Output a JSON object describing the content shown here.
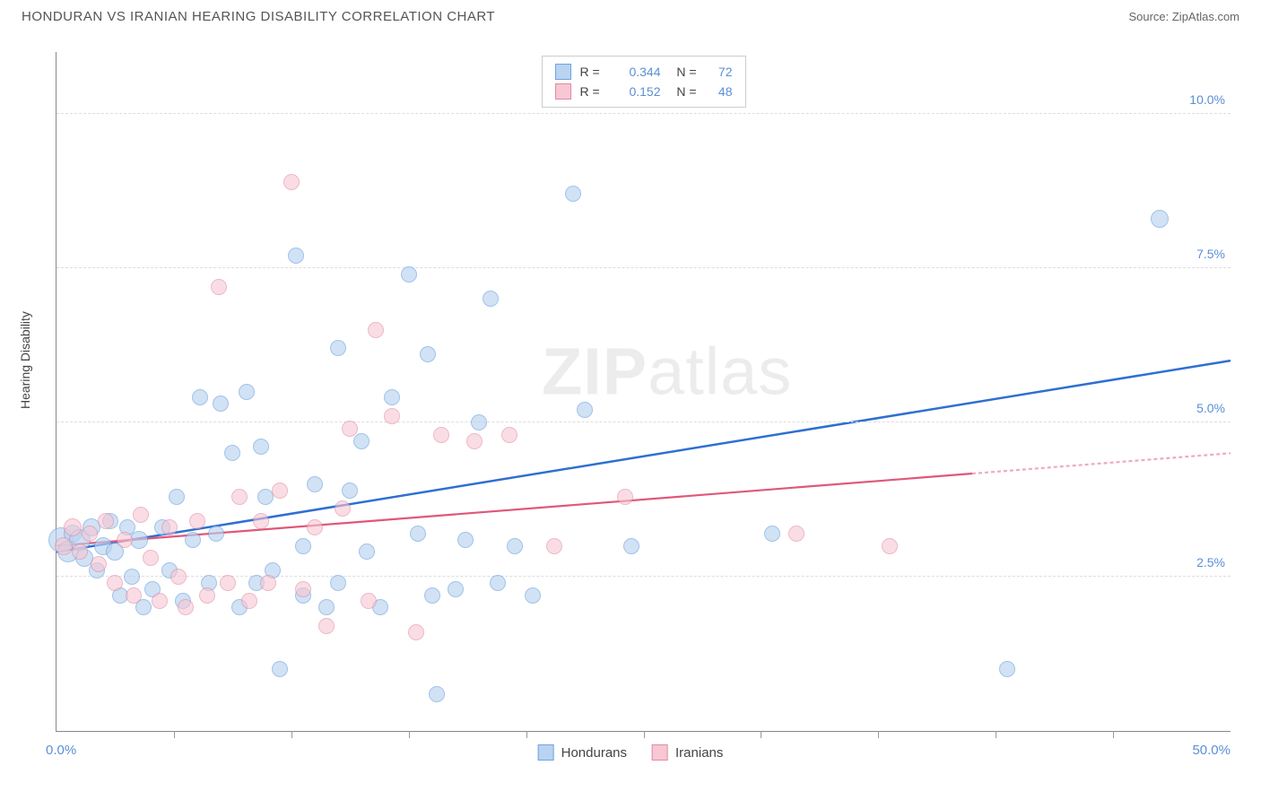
{
  "title": "HONDURAN VS IRANIAN HEARING DISABILITY CORRELATION CHART",
  "source": "Source: ZipAtlas.com",
  "ylabel": "Hearing Disability",
  "watermark_bold": "ZIP",
  "watermark_light": "atlas",
  "legend_top": {
    "series": [
      {
        "swatch_fill": "#b9d3f0",
        "swatch_border": "#6fa3e0",
        "r_label": "R =",
        "r": "0.344",
        "n_label": "N =",
        "n": "72"
      },
      {
        "swatch_fill": "#f7c7d3",
        "swatch_border": "#e08aa3",
        "r_label": "R =",
        "r": "0.152",
        "n_label": "N =",
        "n": "48"
      }
    ]
  },
  "legend_bottom": {
    "series": [
      {
        "swatch_fill": "#b9d3f0",
        "swatch_border": "#6fa3e0",
        "label": "Hondurans"
      },
      {
        "swatch_fill": "#f7c7d3",
        "swatch_border": "#e08aa3",
        "label": "Iranians"
      }
    ]
  },
  "chart": {
    "type": "scatter",
    "xlim": [
      0,
      50
    ],
    "ylim": [
      0,
      11
    ],
    "x_axis_min_label": "0.0%",
    "x_axis_max_label": "50.0%",
    "y_ticks": [
      {
        "v": 2.5,
        "label": "2.5%"
      },
      {
        "v": 5.0,
        "label": "5.0%"
      },
      {
        "v": 7.5,
        "label": "7.5%"
      },
      {
        "v": 10.0,
        "label": "10.0%"
      }
    ],
    "x_tick_positions": [
      5,
      10,
      15,
      20,
      25,
      30,
      35,
      40,
      45
    ],
    "grid_color": "#dddddd",
    "background_color": "#ffffff",
    "series": [
      {
        "name": "Hondurans",
        "marker_fill": "#b9d3f0",
        "marker_border": "#6fa3e0",
        "marker_opacity": 0.65,
        "marker_radius": 8,
        "trend": {
          "color": "#2f6fd1",
          "width": 2.5,
          "x1": 0,
          "y1": 2.9,
          "x2": 50,
          "y2": 6.0,
          "dash_from_x": null
        },
        "points": [
          {
            "x": 0.2,
            "y": 3.1,
            "r": 14
          },
          {
            "x": 0.5,
            "y": 2.9,
            "r": 12
          },
          {
            "x": 0.7,
            "y": 3.2,
            "r": 10
          },
          {
            "x": 1.0,
            "y": 3.1,
            "r": 12
          },
          {
            "x": 1.2,
            "y": 2.8,
            "r": 10
          },
          {
            "x": 1.5,
            "y": 3.3,
            "r": 10
          },
          {
            "x": 1.7,
            "y": 2.6,
            "r": 9
          },
          {
            "x": 2.0,
            "y": 3.0,
            "r": 10
          },
          {
            "x": 2.3,
            "y": 3.4,
            "r": 9
          },
          {
            "x": 2.5,
            "y": 2.9,
            "r": 10
          },
          {
            "x": 2.7,
            "y": 2.2,
            "r": 9
          },
          {
            "x": 3.0,
            "y": 3.3,
            "r": 9
          },
          {
            "x": 3.2,
            "y": 2.5,
            "r": 9
          },
          {
            "x": 3.5,
            "y": 3.1,
            "r": 10
          },
          {
            "x": 3.7,
            "y": 2.0,
            "r": 9
          },
          {
            "x": 4.1,
            "y": 2.3,
            "r": 9
          },
          {
            "x": 4.5,
            "y": 3.3,
            "r": 9
          },
          {
            "x": 4.8,
            "y": 2.6,
            "r": 9
          },
          {
            "x": 5.1,
            "y": 3.8,
            "r": 9
          },
          {
            "x": 5.4,
            "y": 2.1,
            "r": 9
          },
          {
            "x": 5.8,
            "y": 3.1,
            "r": 9
          },
          {
            "x": 6.1,
            "y": 5.4,
            "r": 9
          },
          {
            "x": 6.5,
            "y": 2.4,
            "r": 9
          },
          {
            "x": 6.8,
            "y": 3.2,
            "r": 9
          },
          {
            "x": 7.0,
            "y": 5.3,
            "r": 9
          },
          {
            "x": 7.5,
            "y": 4.5,
            "r": 9
          },
          {
            "x": 7.8,
            "y": 2.0,
            "r": 9
          },
          {
            "x": 8.1,
            "y": 5.5,
            "r": 9
          },
          {
            "x": 8.5,
            "y": 2.4,
            "r": 9
          },
          {
            "x": 8.7,
            "y": 4.6,
            "r": 9
          },
          {
            "x": 8.9,
            "y": 3.8,
            "r": 9
          },
          {
            "x": 9.2,
            "y": 2.6,
            "r": 9
          },
          {
            "x": 9.5,
            "y": 1.0,
            "r": 9
          },
          {
            "x": 10.2,
            "y": 7.7,
            "r": 9
          },
          {
            "x": 10.5,
            "y": 3.0,
            "r": 9
          },
          {
            "x": 10.5,
            "y": 2.2,
            "r": 9
          },
          {
            "x": 11.0,
            "y": 4.0,
            "r": 9
          },
          {
            "x": 11.5,
            "y": 2.0,
            "r": 9
          },
          {
            "x": 12.0,
            "y": 6.2,
            "r": 9
          },
          {
            "x": 12.0,
            "y": 2.4,
            "r": 9
          },
          {
            "x": 12.5,
            "y": 3.9,
            "r": 9
          },
          {
            "x": 13.0,
            "y": 4.7,
            "r": 9
          },
          {
            "x": 13.2,
            "y": 2.9,
            "r": 9
          },
          {
            "x": 13.8,
            "y": 2.0,
            "r": 9
          },
          {
            "x": 14.3,
            "y": 5.4,
            "r": 9
          },
          {
            "x": 15.0,
            "y": 7.4,
            "r": 9
          },
          {
            "x": 15.4,
            "y": 3.2,
            "r": 9
          },
          {
            "x": 15.8,
            "y": 6.1,
            "r": 9
          },
          {
            "x": 16.0,
            "y": 2.2,
            "r": 9
          },
          {
            "x": 16.2,
            "y": 0.6,
            "r": 9
          },
          {
            "x": 17.0,
            "y": 2.3,
            "r": 9
          },
          {
            "x": 17.4,
            "y": 3.1,
            "r": 9
          },
          {
            "x": 18.0,
            "y": 5.0,
            "r": 9
          },
          {
            "x": 18.5,
            "y": 7.0,
            "r": 9
          },
          {
            "x": 18.8,
            "y": 2.4,
            "r": 9
          },
          {
            "x": 19.5,
            "y": 3.0,
            "r": 9
          },
          {
            "x": 20.3,
            "y": 2.2,
            "r": 9
          },
          {
            "x": 22.0,
            "y": 8.7,
            "r": 9
          },
          {
            "x": 22.5,
            "y": 5.2,
            "r": 9
          },
          {
            "x": 24.5,
            "y": 3.0,
            "r": 9
          },
          {
            "x": 30.5,
            "y": 3.2,
            "r": 9
          },
          {
            "x": 40.5,
            "y": 1.0,
            "r": 9
          },
          {
            "x": 47.0,
            "y": 8.3,
            "r": 10
          }
        ]
      },
      {
        "name": "Iranians",
        "marker_fill": "#f7c7d3",
        "marker_border": "#e08aa3",
        "marker_opacity": 0.6,
        "marker_radius": 8,
        "trend": {
          "color": "#e0577b",
          "width": 2.2,
          "x1": 0,
          "y1": 3.0,
          "x2": 50,
          "y2": 4.5,
          "dash_from_x": 39
        },
        "points": [
          {
            "x": 0.3,
            "y": 3.0,
            "r": 10
          },
          {
            "x": 0.7,
            "y": 3.3,
            "r": 10
          },
          {
            "x": 1.0,
            "y": 2.9,
            "r": 9
          },
          {
            "x": 1.4,
            "y": 3.2,
            "r": 9
          },
          {
            "x": 1.8,
            "y": 2.7,
            "r": 9
          },
          {
            "x": 2.1,
            "y": 3.4,
            "r": 9
          },
          {
            "x": 2.5,
            "y": 2.4,
            "r": 9
          },
          {
            "x": 2.9,
            "y": 3.1,
            "r": 9
          },
          {
            "x": 3.3,
            "y": 2.2,
            "r": 9
          },
          {
            "x": 3.6,
            "y": 3.5,
            "r": 9
          },
          {
            "x": 4.0,
            "y": 2.8,
            "r": 9
          },
          {
            "x": 4.4,
            "y": 2.1,
            "r": 9
          },
          {
            "x": 4.8,
            "y": 3.3,
            "r": 9
          },
          {
            "x": 5.2,
            "y": 2.5,
            "r": 9
          },
          {
            "x": 5.5,
            "y": 2.0,
            "r": 9
          },
          {
            "x": 6.0,
            "y": 3.4,
            "r": 9
          },
          {
            "x": 6.4,
            "y": 2.2,
            "r": 9
          },
          {
            "x": 6.9,
            "y": 7.2,
            "r": 9
          },
          {
            "x": 7.3,
            "y": 2.4,
            "r": 9
          },
          {
            "x": 7.8,
            "y": 3.8,
            "r": 9
          },
          {
            "x": 8.2,
            "y": 2.1,
            "r": 9
          },
          {
            "x": 8.7,
            "y": 3.4,
            "r": 9
          },
          {
            "x": 9.0,
            "y": 2.4,
            "r": 9
          },
          {
            "x": 9.5,
            "y": 3.9,
            "r": 9
          },
          {
            "x": 10.0,
            "y": 8.9,
            "r": 9
          },
          {
            "x": 10.5,
            "y": 2.3,
            "r": 9
          },
          {
            "x": 11.0,
            "y": 3.3,
            "r": 9
          },
          {
            "x": 11.5,
            "y": 1.7,
            "r": 9
          },
          {
            "x": 12.2,
            "y": 3.6,
            "r": 9
          },
          {
            "x": 12.5,
            "y": 4.9,
            "r": 9
          },
          {
            "x": 13.3,
            "y": 2.1,
            "r": 9
          },
          {
            "x": 13.6,
            "y": 6.5,
            "r": 9
          },
          {
            "x": 14.3,
            "y": 5.1,
            "r": 9
          },
          {
            "x": 15.3,
            "y": 1.6,
            "r": 9
          },
          {
            "x": 16.4,
            "y": 4.8,
            "r": 9
          },
          {
            "x": 17.8,
            "y": 4.7,
            "r": 9
          },
          {
            "x": 19.3,
            "y": 4.8,
            "r": 9
          },
          {
            "x": 21.2,
            "y": 3.0,
            "r": 9
          },
          {
            "x": 24.2,
            "y": 3.8,
            "r": 9
          },
          {
            "x": 31.5,
            "y": 3.2,
            "r": 9
          },
          {
            "x": 35.5,
            "y": 3.0,
            "r": 9
          }
        ]
      }
    ]
  }
}
